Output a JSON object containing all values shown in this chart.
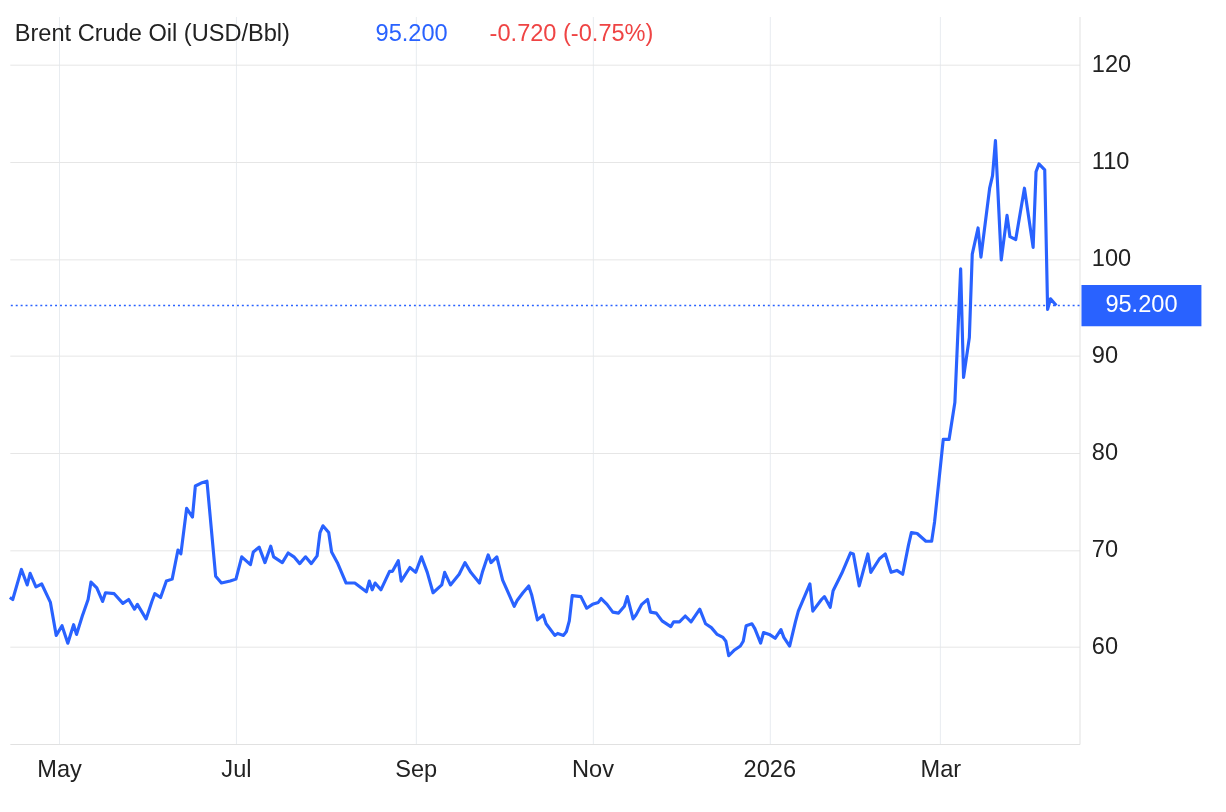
{
  "chart_data": {
    "type": "line",
    "title": "Brent Crude Oil (USD/Bbl)",
    "annotations": [
      "95.200",
      "-0.720 (-0.75%)"
    ],
    "x": [
      "2025-04-14",
      "2025-04-15",
      "2025-04-18",
      "2025-04-20",
      "2025-04-21",
      "2025-04-23",
      "2025-04-25",
      "2025-04-28",
      "2025-04-30",
      "2025-05-02",
      "2025-05-04",
      "2025-05-06",
      "2025-05-07",
      "2025-05-09",
      "2025-05-11",
      "2025-05-12",
      "2025-05-14",
      "2025-05-16",
      "2025-05-17",
      "2025-05-20",
      "2025-05-23",
      "2025-05-25",
      "2025-05-27",
      "2025-05-28",
      "2025-05-31",
      "2025-06-02",
      "2025-06-03",
      "2025-06-05",
      "2025-06-07",
      "2025-06-09",
      "2025-06-11",
      "2025-06-12",
      "2025-06-14",
      "2025-06-16",
      "2025-06-17",
      "2025-06-19",
      "2025-06-21",
      "2025-06-24",
      "2025-06-26",
      "2025-06-29",
      "2025-07-01",
      "2025-07-03",
      "2025-07-06",
      "2025-07-07",
      "2025-07-09",
      "2025-07-11",
      "2025-07-13",
      "2025-07-14",
      "2025-07-17",
      "2025-07-19",
      "2025-07-21",
      "2025-07-23",
      "2025-07-25",
      "2025-07-27",
      "2025-07-29",
      "2025-07-30",
      "2025-07-31",
      "2025-08-02",
      "2025-08-03",
      "2025-08-05",
      "2025-08-08",
      "2025-08-11",
      "2025-08-15",
      "2025-08-16",
      "2025-08-17",
      "2025-08-18",
      "2025-08-20",
      "2025-08-23",
      "2025-08-24",
      "2025-08-26",
      "2025-08-27",
      "2025-08-30",
      "2025-09-01",
      "2025-09-03",
      "2025-09-05",
      "2025-09-07",
      "2025-09-10",
      "2025-09-11",
      "2025-09-13",
      "2025-09-16",
      "2025-09-18",
      "2025-09-20",
      "2025-09-23",
      "2025-09-24",
      "2025-09-26",
      "2025-09-27",
      "2025-09-29",
      "2025-10-01",
      "2025-10-05",
      "2025-10-06",
      "2025-10-08",
      "2025-10-10",
      "2025-10-11",
      "2025-10-13",
      "2025-10-15",
      "2025-10-16",
      "2025-10-19",
      "2025-10-20",
      "2025-10-22",
      "2025-10-23",
      "2025-10-24",
      "2025-10-25",
      "2025-10-28",
      "2025-10-30",
      "2025-11-01",
      "2025-11-03",
      "2025-11-04",
      "2025-11-06",
      "2025-11-08",
      "2025-11-10",
      "2025-11-12",
      "2025-11-13",
      "2025-11-15",
      "2025-11-16",
      "2025-11-18",
      "2025-11-20",
      "2025-11-21",
      "2025-11-23",
      "2025-11-25",
      "2025-11-28",
      "2025-11-29",
      "2025-12-01",
      "2025-12-03",
      "2025-12-05",
      "2025-12-08",
      "2025-12-10",
      "2025-12-12",
      "2025-12-14",
      "2025-12-16",
      "2025-12-17",
      "2025-12-18",
      "2025-12-20",
      "2025-12-22",
      "2025-12-23",
      "2025-12-24",
      "2025-12-26",
      "2025-12-27",
      "2025-12-29",
      "2025-12-30",
      "2026-01-01",
      "2026-01-03",
      "2026-01-05",
      "2026-01-06",
      "2026-01-08",
      "2026-01-10",
      "2026-01-11",
      "2026-01-15",
      "2026-01-16",
      "2026-01-19",
      "2026-01-20",
      "2026-01-22",
      "2026-01-23",
      "2026-01-26",
      "2026-01-29",
      "2026-01-30",
      "2026-02-01",
      "2026-02-04",
      "2026-02-05",
      "2026-02-08",
      "2026-02-10",
      "2026-02-12",
      "2026-02-14",
      "2026-02-16",
      "2026-02-18",
      "2026-02-19",
      "2026-02-21",
      "2026-02-24",
      "2026-02-26",
      "2026-02-27",
      "2026-03-02",
      "2026-03-04",
      "2026-03-06",
      "2026-03-08",
      "2026-03-09",
      "2026-03-11",
      "2026-03-12",
      "2026-03-14",
      "2026-03-15",
      "2026-03-18",
      "2026-03-19",
      "2026-03-20",
      "2026-03-22",
      "2026-03-24",
      "2026-03-25",
      "2026-03-27",
      "2026-03-30",
      "2026-04-02",
      "2026-04-03",
      "2026-04-04",
      "2026-04-06",
      "2026-04-07",
      "2026-04-08",
      "2026-04-10"
    ],
    "series": [
      {
        "color": "#2962ff",
        "values": [
          65.1,
          64.9,
          68.0,
          66.4,
          67.6,
          66.2,
          66.5,
          64.6,
          61.2,
          62.2,
          60.4,
          62.3,
          61.3,
          63.2,
          64.9,
          66.7,
          66.1,
          64.7,
          65.6,
          65.5,
          64.5,
          64.9,
          63.9,
          64.4,
          62.9,
          64.7,
          65.5,
          65.1,
          66.8,
          67.0,
          70.0,
          69.6,
          74.3,
          73.4,
          76.6,
          76.9,
          77.1,
          67.3,
          66.6,
          66.8,
          67.0,
          69.3,
          68.5,
          69.8,
          70.3,
          68.7,
          70.4,
          69.3,
          68.7,
          69.7,
          69.3,
          68.6,
          69.3,
          68.6,
          69.4,
          71.8,
          72.5,
          71.8,
          69.8,
          68.7,
          66.6,
          66.6,
          65.7,
          66.8,
          65.9,
          66.6,
          65.9,
          67.8,
          67.8,
          68.9,
          66.8,
          68.2,
          67.7,
          69.3,
          67.7,
          65.6,
          66.4,
          67.7,
          66.4,
          67.5,
          68.7,
          67.7,
          66.6,
          67.7,
          69.5,
          68.7,
          69.3,
          66.9,
          64.2,
          64.8,
          65.6,
          66.3,
          65.4,
          62.8,
          63.3,
          62.4,
          61.2,
          61.4,
          61.2,
          61.6,
          62.7,
          65.3,
          65.2,
          64.0,
          64.4,
          64.6,
          65.0,
          64.4,
          63.6,
          63.5,
          64.2,
          65.2,
          62.9,
          63.3,
          64.4,
          64.9,
          63.6,
          63.5,
          62.7,
          62.1,
          62.6,
          62.6,
          63.2,
          62.6,
          63.9,
          62.4,
          62.0,
          61.3,
          61.0,
          60.6,
          59.1,
          59.7,
          60.1,
          60.6,
          62.2,
          62.4,
          61.9,
          60.4,
          61.5,
          61.3,
          60.9,
          61.8,
          61.0,
          60.1,
          62.6,
          63.7,
          66.5,
          63.7,
          64.9,
          65.2,
          64.1,
          65.8,
          67.6,
          69.7,
          69.6,
          66.3,
          69.6,
          67.7,
          69.1,
          69.6,
          67.7,
          67.9,
          67.5,
          70.5,
          71.8,
          71.7,
          70.9,
          70.9,
          72.9,
          81.4,
          81.4,
          85.2,
          99.0,
          87.8,
          91.9,
          100.5,
          103.2,
          100.2,
          107.3,
          108.6,
          112.2,
          99.9,
          104.5,
          102.3,
          102.0,
          107.3,
          101.2,
          109.0,
          109.8,
          109.2,
          94.8,
          95.9,
          95.2
        ]
      }
    ],
    "xlim": [
      "2025-04-14",
      "2026-04-18"
    ],
    "xticks": [
      {
        "value": "2025-05-01",
        "label": "May"
      },
      {
        "value": "2025-07-01",
        "label": "Jul"
      },
      {
        "value": "2025-09-01",
        "label": "Sep"
      },
      {
        "value": "2025-11-01",
        "label": "Nov"
      },
      {
        "value": "2026-01-01",
        "label": "2026"
      },
      {
        "value": "2026-03-01",
        "label": "Mar"
      }
    ],
    "ylim": [
      50,
      125
    ],
    "yticks": [
      60,
      70,
      80,
      90,
      100,
      110,
      120
    ],
    "ref_lines": [
      {
        "axis": "y",
        "value": 95.2,
        "label": "95.200",
        "color": "#2962ff",
        "line_style": "dotted"
      }
    ],
    "grid": true,
    "line_style": "solid",
    "marker": "none"
  }
}
